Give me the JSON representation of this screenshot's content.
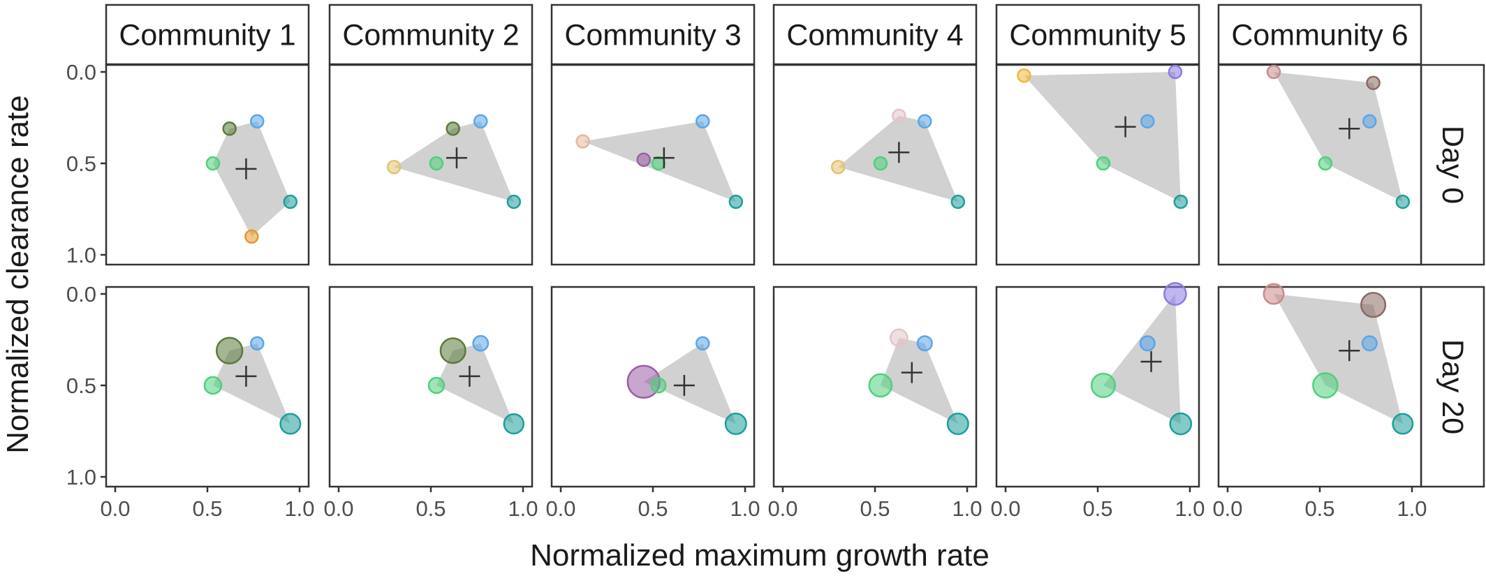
{
  "chart_data": {
    "type": "scatter",
    "title": "",
    "xlabel": "Normalized maximum growth rate",
    "ylabel": "Normalized clearance rate",
    "xlim": [
      0,
      1
    ],
    "ylim": [
      0,
      1
    ],
    "y_reversed": true,
    "x_ticks": [
      0.0,
      0.5,
      1.0
    ],
    "y_ticks": [
      0.0,
      0.5,
      1.0
    ],
    "x_tick_labels": [
      "0.0",
      "0.5",
      "1.0"
    ],
    "y_tick_labels": [
      "0.0",
      "0.5",
      "1.0"
    ],
    "column_facets": [
      "Community 1",
      "Community 2",
      "Community 3",
      "Community 4",
      "Community 5",
      "Community 6"
    ],
    "row_facets": [
      "Day 0",
      "Day 20"
    ],
    "species": {
      "sp_blue": {
        "x": 0.77,
        "y": 0.27,
        "color": "#5aa5e8"
      },
      "sp_teal": {
        "x": 0.95,
        "y": 0.71,
        "color": "#1e9e9a"
      },
      "sp_green": {
        "x": 0.53,
        "y": 0.5,
        "color": "#50cf7e"
      },
      "sp_olive": {
        "x": 0.62,
        "y": 0.31,
        "color": "#5b7a3c"
      },
      "sp_orange": {
        "x": 0.74,
        "y": 0.9,
        "color": "#e39a2b"
      },
      "sp_tan": {
        "x": 0.3,
        "y": 0.52,
        "color": "#e3c26e"
      },
      "sp_peach": {
        "x": 0.12,
        "y": 0.38,
        "color": "#e3b8a0"
      },
      "sp_purple": {
        "x": 0.45,
        "y": 0.48,
        "color": "#9a5fa6"
      },
      "sp_pink": {
        "x": 0.63,
        "y": 0.24,
        "color": "#e3c4c8"
      },
      "sp_yellow": {
        "x": 0.1,
        "y": 0.02,
        "color": "#f0b73a"
      },
      "sp_violet": {
        "x": 0.92,
        "y": 0.0,
        "color": "#8c7ae6"
      },
      "sp_rose": {
        "x": 0.25,
        "y": 0.0,
        "color": "#c98a8a"
      },
      "sp_brown": {
        "x": 0.79,
        "y": 0.06,
        "color": "#8a6a64"
      }
    },
    "panels": [
      {
        "community": "Community 1",
        "day": "Day 0",
        "centroid": [
          0.71,
          0.53
        ],
        "points": [
          {
            "species": "sp_blue",
            "size": 1
          },
          {
            "species": "sp_olive",
            "size": 1
          },
          {
            "species": "sp_green",
            "size": 1
          },
          {
            "species": "sp_teal",
            "size": 1
          },
          {
            "species": "sp_orange",
            "size": 1
          }
        ]
      },
      {
        "community": "Community 2",
        "day": "Day 0",
        "centroid": [
          0.64,
          0.47
        ],
        "points": [
          {
            "species": "sp_blue",
            "size": 1
          },
          {
            "species": "sp_olive",
            "size": 1
          },
          {
            "species": "sp_green",
            "size": 1
          },
          {
            "species": "sp_tan",
            "size": 1
          },
          {
            "species": "sp_teal",
            "size": 1
          }
        ]
      },
      {
        "community": "Community 3",
        "day": "Day 0",
        "centroid": [
          0.56,
          0.47
        ],
        "points": [
          {
            "species": "sp_blue",
            "size": 1
          },
          {
            "species": "sp_peach",
            "size": 1
          },
          {
            "species": "sp_purple",
            "size": 1
          },
          {
            "species": "sp_green",
            "size": 1
          },
          {
            "species": "sp_teal",
            "size": 1
          }
        ]
      },
      {
        "community": "Community 4",
        "day": "Day 0",
        "centroid": [
          0.63,
          0.44
        ],
        "points": [
          {
            "species": "sp_pink",
            "size": 1
          },
          {
            "species": "sp_blue",
            "size": 1
          },
          {
            "species": "sp_tan",
            "size": 1
          },
          {
            "species": "sp_green",
            "size": 1
          },
          {
            "species": "sp_teal",
            "size": 1
          }
        ]
      },
      {
        "community": "Community 5",
        "day": "Day 0",
        "centroid": [
          0.65,
          0.3
        ],
        "points": [
          {
            "species": "sp_yellow",
            "size": 1
          },
          {
            "species": "sp_violet",
            "size": 1
          },
          {
            "species": "sp_blue",
            "size": 1
          },
          {
            "species": "sp_green",
            "size": 1
          },
          {
            "species": "sp_teal",
            "size": 1
          }
        ]
      },
      {
        "community": "Community 6",
        "day": "Day 0",
        "centroid": [
          0.66,
          0.31
        ],
        "points": [
          {
            "species": "sp_rose",
            "size": 1
          },
          {
            "species": "sp_brown",
            "size": 1
          },
          {
            "species": "sp_blue",
            "size": 1
          },
          {
            "species": "sp_green",
            "size": 1
          },
          {
            "species": "sp_teal",
            "size": 1
          }
        ]
      },
      {
        "community": "Community 1",
        "day": "Day 20",
        "centroid": [
          0.71,
          0.45
        ],
        "points": [
          {
            "species": "sp_blue",
            "size": 1
          },
          {
            "species": "sp_olive",
            "size": 4.2
          },
          {
            "species": "sp_green",
            "size": 1.8
          },
          {
            "species": "sp_teal",
            "size": 2.5
          }
        ]
      },
      {
        "community": "Community 2",
        "day": "Day 20",
        "centroid": [
          0.71,
          0.45
        ],
        "points": [
          {
            "species": "sp_blue",
            "size": 1.4
          },
          {
            "species": "sp_olive",
            "size": 3.9
          },
          {
            "species": "sp_green",
            "size": 1.5
          },
          {
            "species": "sp_teal",
            "size": 2.4
          }
        ]
      },
      {
        "community": "Community 3",
        "day": "Day 20",
        "centroid": [
          0.67,
          0.5
        ],
        "points": [
          {
            "species": "sp_blue",
            "size": 1
          },
          {
            "species": "sp_purple",
            "size": 6.5
          },
          {
            "species": "sp_green",
            "size": 1.3
          },
          {
            "species": "sp_teal",
            "size": 2.7
          }
        ]
      },
      {
        "community": "Community 4",
        "day": "Day 20",
        "centroid": [
          0.7,
          0.43
        ],
        "points": [
          {
            "species": "sp_pink",
            "size": 1.8
          },
          {
            "species": "sp_blue",
            "size": 1.3
          },
          {
            "species": "sp_green",
            "size": 3.2
          },
          {
            "species": "sp_teal",
            "size": 2.7
          }
        ]
      },
      {
        "community": "Community 5",
        "day": "Day 20",
        "centroid": [
          0.79,
          0.37
        ],
        "points": [
          {
            "species": "sp_violet",
            "size": 3.0
          },
          {
            "species": "sp_blue",
            "size": 1.3
          },
          {
            "species": "sp_green",
            "size": 3.5
          },
          {
            "species": "sp_teal",
            "size": 2.8
          }
        ]
      },
      {
        "community": "Community 6",
        "day": "Day 20",
        "centroid": [
          0.66,
          0.31
        ],
        "points": [
          {
            "species": "sp_rose",
            "size": 2.5
          },
          {
            "species": "sp_brown",
            "size": 3.7
          },
          {
            "species": "sp_blue",
            "size": 1.3
          },
          {
            "species": "sp_green",
            "size": 3.8
          },
          {
            "species": "sp_teal",
            "size": 2.5
          }
        ]
      }
    ],
    "grid": false,
    "legend": "none"
  }
}
